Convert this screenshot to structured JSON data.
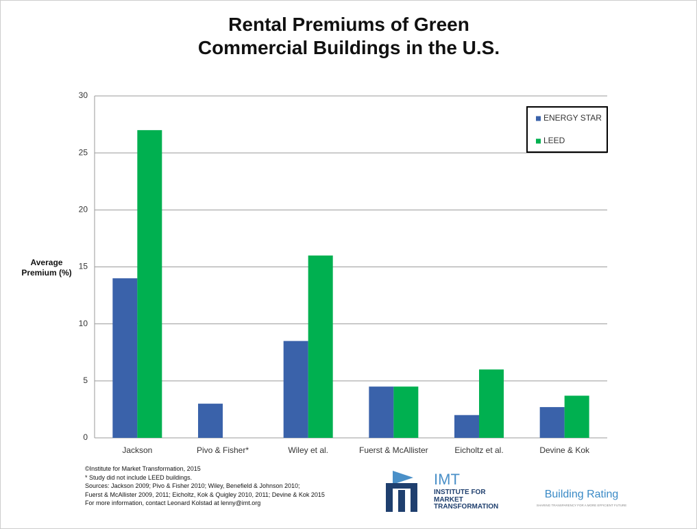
{
  "chart_data": {
    "type": "bar",
    "title": "Rental Premiums of Green Commercial Buildings in the U.S.",
    "y_label": "Average Premium (%)",
    "categories": [
      "Jackson",
      "Pivo & Fisher*",
      "Wiley et al.",
      "Fuerst & McAllister",
      "Eicholtz et al.",
      "Devine & Kok"
    ],
    "series": [
      {
        "name": "ENERGY STAR",
        "color": "#3a62aa",
        "values": [
          14,
          3,
          8.5,
          4.5,
          2,
          2.7
        ]
      },
      {
        "name": "LEED",
        "color": "#00b050",
        "values": [
          27,
          null,
          16,
          4.5,
          6,
          3.7
        ]
      }
    ],
    "ylim": [
      0,
      30
    ],
    "yticks": [
      0,
      5,
      10,
      15,
      20,
      25,
      30
    ],
    "grid": true,
    "legend": "upper right"
  },
  "footer": {
    "notes": [
      "©Institute for Market Transformation, 2015",
      "* Study did not include LEED buildings.",
      "Sources: Jackson 2009; Pivo & Fisher 2010; Wiley, Benefield & Johnson 2010;",
      "Fuerst & McAllister 2009, 2011; Eicholtz, Kok & Quigley 2010, 2011; Devine & Kok 2015",
      "For more information, contact Leonard Kolstad at lenny@imt.org"
    ],
    "imt_name": "IMT",
    "imt_full": "INSTITUTE FOR MARKET TRANSFORMATION",
    "br_name": "Building Rating",
    "br_tagline": "SHARING TRANSPARENCY FOR A MORE EFFICIENT FUTURE"
  }
}
